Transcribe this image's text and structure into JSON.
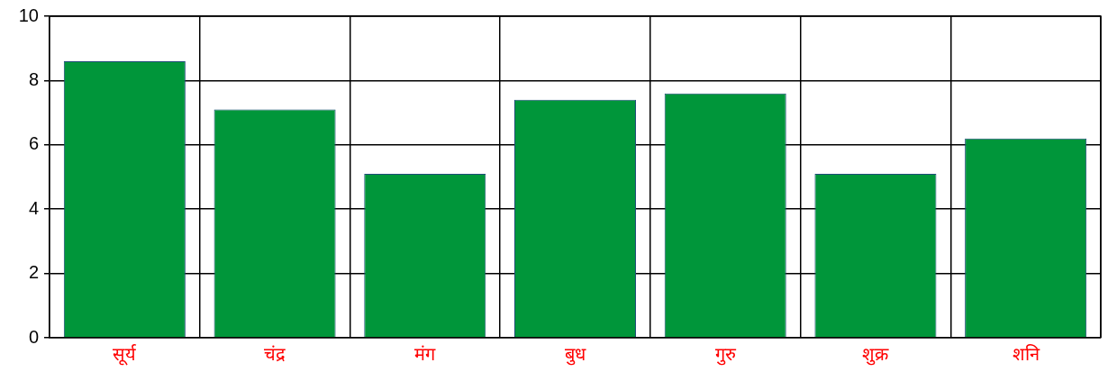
{
  "chart_data": {
    "type": "bar",
    "categories": [
      "सूर्य",
      "चंद्र",
      "मंग",
      "बुध",
      "गुरु",
      "शुक्र",
      "शनि"
    ],
    "values": [
      8.6,
      7.1,
      5.1,
      7.4,
      7.6,
      5.1,
      6.2
    ],
    "color": "#00963a",
    "ylim": [
      0,
      10
    ],
    "yticks": [
      0,
      2,
      4,
      6,
      8,
      10
    ],
    "grid": true,
    "legend": false
  }
}
